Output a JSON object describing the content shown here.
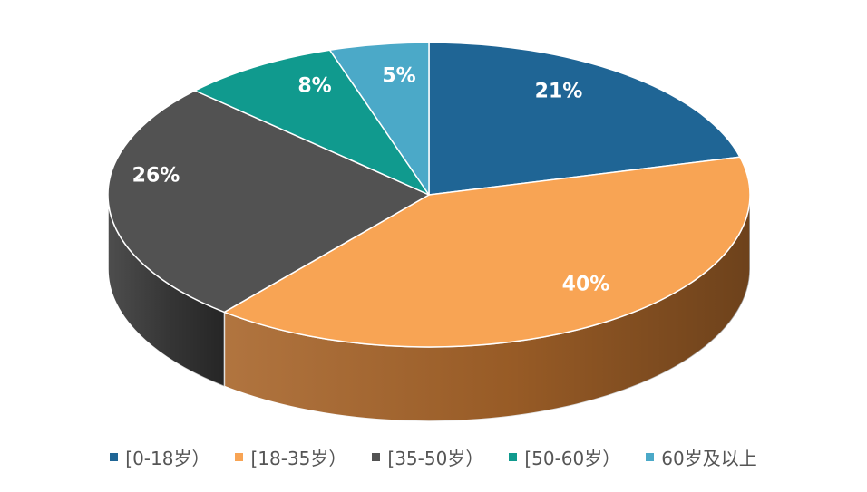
{
  "chart_data": {
    "type": "pie",
    "style": "3d",
    "categories": [
      "[0-18岁）",
      "[18-35岁）",
      "[35-50岁）",
      "[50-60岁）",
      "60岁及以上"
    ],
    "values": [
      21,
      40,
      26,
      8,
      5
    ],
    "labels": [
      "21%",
      "40%",
      "26%",
      "8%",
      "5%"
    ],
    "colors": [
      "#1F6595",
      "#F8A454",
      "#525252",
      "#109A8E",
      "#4BA9C8"
    ],
    "side_colors": [
      "#123F5E",
      "#A8652A",
      "#3A3A3A",
      "#0A665E",
      "#2F7590"
    ],
    "legend_position": "bottom"
  }
}
